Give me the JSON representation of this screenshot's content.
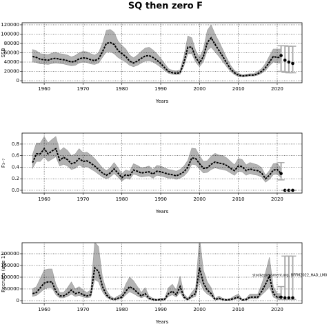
{
  "title": "SQ then zero F",
  "chart_data": [
    {
      "type": "line",
      "ylabel": "SSB",
      "xlabel": "Years",
      "grid": true,
      "x": [
        1957,
        1958,
        1959,
        1960,
        1961,
        1962,
        1963,
        1964,
        1965,
        1966,
        1967,
        1968,
        1969,
        1970,
        1971,
        1972,
        1973,
        1974,
        1975,
        1976,
        1977,
        1978,
        1979,
        1980,
        1981,
        1982,
        1983,
        1984,
        1985,
        1986,
        1987,
        1988,
        1989,
        1990,
        1991,
        1992,
        1993,
        1994,
        1995,
        1996,
        1997,
        1998,
        1999,
        2000,
        2001,
        2002,
        2003,
        2004,
        2005,
        2006,
        2007,
        2008,
        2009,
        2010,
        2011,
        2012,
        2013,
        2014,
        2015,
        2016,
        2017,
        2018,
        2019,
        2020,
        2021
      ],
      "xlim": [
        1954.3,
        2026.4
      ],
      "xticks": [
        1960,
        1970,
        1980,
        1990,
        2000,
        2010,
        2020
      ],
      "ylim": [
        -4400,
        124400
      ],
      "yticks": [
        0,
        20000,
        40000,
        60000,
        80000,
        100000,
        120000
      ],
      "series": [
        {
          "color": "#000000",
          "band_color": "#b3b3b3",
          "values": [
            52000,
            50000,
            46000,
            45000,
            44000,
            47000,
            48000,
            46000,
            45000,
            43000,
            40000,
            42000,
            47000,
            49000,
            48000,
            45000,
            43000,
            47000,
            62000,
            80000,
            82000,
            78000,
            65000,
            58000,
            52000,
            42000,
            38000,
            42000,
            48000,
            53000,
            54000,
            50000,
            44000,
            37000,
            28000,
            20000,
            17000,
            16000,
            17000,
            40000,
            72000,
            72000,
            50000,
            38000,
            52000,
            82000,
            92000,
            78000,
            65000,
            52000,
            38000,
            25000,
            17000,
            12000,
            10000,
            11000,
            12000,
            12000,
            15000,
            20000,
            28000,
            40000,
            52000,
            50000,
            50000
          ],
          "lower": [
            40000,
            39000,
            36000,
            36000,
            35000,
            37000,
            38000,
            37000,
            36000,
            34000,
            32000,
            33000,
            38000,
            40000,
            39000,
            36000,
            35000,
            38000,
            50000,
            62000,
            62000,
            58000,
            50000,
            45000,
            40000,
            33000,
            30000,
            33000,
            38000,
            42000,
            43000,
            40000,
            35000,
            29000,
            22000,
            16000,
            14000,
            13000,
            14000,
            32000,
            58000,
            58000,
            40000,
            30000,
            41000,
            65000,
            72000,
            62000,
            52000,
            41000,
            30000,
            20000,
            13000,
            9000,
            8000,
            9000,
            10000,
            10000,
            12000,
            16000,
            22000,
            32000,
            40000,
            38000,
            38000
          ],
          "upper": [
            67000,
            64000,
            58000,
            57000,
            56000,
            59000,
            61000,
            58000,
            57000,
            55000,
            51000,
            54000,
            60000,
            63000,
            62000,
            58000,
            55000,
            60000,
            80000,
            108000,
            110000,
            104000,
            85000,
            76000,
            68000,
            55000,
            49000,
            55000,
            63000,
            70000,
            72000,
            66000,
            58000,
            48000,
            37000,
            26000,
            22000,
            21000,
            23000,
            53000,
            96000,
            92000,
            65000,
            50000,
            68000,
            108000,
            120000,
            100000,
            84000,
            67000,
            49000,
            33000,
            22000,
            16000,
            13000,
            14000,
            15000,
            15000,
            20000,
            26000,
            37000,
            53000,
            68000,
            68000,
            68000
          ]
        }
      ],
      "projection": {
        "color": "#000000",
        "error_color": "#aaaaaa",
        "x": [
          2021,
          2022,
          2023,
          2024
        ],
        "values": [
          54000,
          44000,
          40000,
          37000
        ],
        "lower": [
          20000,
          18000,
          17000,
          17000
        ],
        "upper": [
          75000,
          75000,
          74000,
          74000
        ]
      }
    },
    {
      "type": "line",
      "ylabel": "F₃₋₇",
      "xlabel": "Years",
      "grid": true,
      "x": [
        1957,
        1958,
        1959,
        1960,
        1961,
        1962,
        1963,
        1964,
        1965,
        1966,
        1967,
        1968,
        1969,
        1970,
        1971,
        1972,
        1973,
        1974,
        1975,
        1976,
        1977,
        1978,
        1979,
        1980,
        1981,
        1982,
        1983,
        1984,
        1985,
        1986,
        1987,
        1988,
        1989,
        1990,
        1991,
        1992,
        1993,
        1994,
        1995,
        1996,
        1997,
        1998,
        1999,
        2000,
        2001,
        2002,
        2003,
        2004,
        2005,
        2006,
        2007,
        2008,
        2009,
        2010,
        2011,
        2012,
        2013,
        2014,
        2015,
        2016,
        2017,
        2018,
        2019,
        2020,
        2021
      ],
      "xlim": [
        1954.3,
        2026.4
      ],
      "xticks": [
        1960,
        1970,
        1980,
        1990,
        2000,
        2010,
        2020
      ],
      "ylim": [
        -0.048,
        0.99
      ],
      "yticks": [
        {
          "value": 0,
          "label": "0.0"
        },
        0.2,
        0.4,
        0.6,
        0.8
      ],
      "series": [
        {
          "color": "#000000",
          "band_color": "#b3b3b3",
          "values": [
            0.48,
            0.63,
            0.63,
            0.72,
            0.63,
            0.68,
            0.72,
            0.52,
            0.57,
            0.53,
            0.46,
            0.48,
            0.55,
            0.5,
            0.51,
            0.47,
            0.42,
            0.36,
            0.3,
            0.26,
            0.3,
            0.37,
            0.3,
            0.22,
            0.27,
            0.25,
            0.35,
            0.33,
            0.3,
            0.31,
            0.32,
            0.28,
            0.33,
            0.32,
            0.3,
            0.28,
            0.27,
            0.25,
            0.28,
            0.32,
            0.4,
            0.56,
            0.55,
            0.46,
            0.38,
            0.39,
            0.45,
            0.49,
            0.47,
            0.46,
            0.43,
            0.38,
            0.34,
            0.42,
            0.41,
            0.34,
            0.37,
            0.35,
            0.34,
            0.3,
            0.2,
            0.26,
            0.35,
            0.36,
            0.29
          ],
          "lower": [
            0.38,
            0.5,
            0.5,
            0.58,
            0.5,
            0.54,
            0.58,
            0.42,
            0.45,
            0.42,
            0.36,
            0.38,
            0.44,
            0.4,
            0.41,
            0.37,
            0.33,
            0.28,
            0.23,
            0.2,
            0.23,
            0.29,
            0.23,
            0.16,
            0.21,
            0.19,
            0.28,
            0.26,
            0.23,
            0.24,
            0.25,
            0.21,
            0.26,
            0.25,
            0.23,
            0.21,
            0.21,
            0.19,
            0.21,
            0.25,
            0.32,
            0.45,
            0.44,
            0.37,
            0.3,
            0.31,
            0.36,
            0.39,
            0.37,
            0.36,
            0.34,
            0.3,
            0.26,
            0.33,
            0.32,
            0.26,
            0.29,
            0.27,
            0.26,
            0.23,
            0.14,
            0.19,
            0.27,
            0.28,
            0.22
          ],
          "upper": [
            0.62,
            0.82,
            0.82,
            0.93,
            0.82,
            0.88,
            0.93,
            0.68,
            0.74,
            0.69,
            0.6,
            0.63,
            0.72,
            0.65,
            0.66,
            0.61,
            0.55,
            0.47,
            0.39,
            0.34,
            0.39,
            0.48,
            0.39,
            0.29,
            0.35,
            0.33,
            0.46,
            0.43,
            0.39,
            0.4,
            0.42,
            0.36,
            0.43,
            0.42,
            0.39,
            0.36,
            0.35,
            0.33,
            0.36,
            0.42,
            0.52,
            0.73,
            0.72,
            0.6,
            0.5,
            0.51,
            0.59,
            0.64,
            0.61,
            0.6,
            0.56,
            0.5,
            0.44,
            0.55,
            0.53,
            0.44,
            0.48,
            0.46,
            0.44,
            0.39,
            0.26,
            0.34,
            0.46,
            0.47,
            0.38
          ]
        }
      ],
      "projection": {
        "color": "#000000",
        "error_color": "#aaaaaa",
        "x": [
          2021,
          2022,
          2023,
          2024
        ],
        "values": [
          0.29,
          0,
          0,
          0
        ],
        "lower": [
          0.18,
          0,
          0,
          0
        ],
        "upper": [
          0.48,
          0,
          0,
          0
        ]
      }
    },
    {
      "type": "line",
      "ylabel": "Recruits (age 1)",
      "xlabel": "Years",
      "grid": true,
      "annotation": "stockassessment.org, BFFM2022_HAD_LM0",
      "x": [
        1957,
        1958,
        1959,
        1960,
        1961,
        1962,
        1963,
        1964,
        1965,
        1966,
        1967,
        1968,
        1969,
        1970,
        1971,
        1972,
        1973,
        1974,
        1975,
        1976,
        1977,
        1978,
        1979,
        1980,
        1981,
        1982,
        1983,
        1984,
        1985,
        1986,
        1987,
        1988,
        1989,
        1990,
        1991,
        1992,
        1993,
        1994,
        1995,
        1996,
        1997,
        1998,
        1999,
        2000,
        2001,
        2002,
        2003,
        2004,
        2005,
        2006,
        2007,
        2008,
        2009,
        2010,
        2011,
        2012,
        2013,
        2014,
        2015,
        2016,
        2017,
        2018,
        2019,
        2020,
        2021
      ],
      "xlim": [
        1954.3,
        2026.4
      ],
      "xticks": [
        1960,
        1970,
        1980,
        1990,
        2000,
        2010,
        2020
      ],
      "ylim": [
        -11800,
        247000
      ],
      "yticks": [
        0,
        50000,
        100000,
        150000,
        200000
      ],
      "series": [
        {
          "color": "#000000",
          "band_color": "#b3b3b3",
          "values": [
            30000,
            35000,
            55000,
            75000,
            80000,
            80000,
            40000,
            20000,
            20000,
            30000,
            45000,
            30000,
            35000,
            25000,
            20000,
            25000,
            140000,
            125000,
            60000,
            25000,
            10000,
            5000,
            10000,
            15000,
            40000,
            60000,
            50000,
            35000,
            20000,
            30000,
            10000,
            5000,
            3000,
            5000,
            5000,
            30000,
            40000,
            25000,
            60000,
            15000,
            5000,
            20000,
            30000,
            140000,
            75000,
            45000,
            30000,
            5000,
            10000,
            5000,
            3000,
            5000,
            10000,
            15000,
            3000,
            5000,
            15000,
            15000,
            15000,
            40000,
            70000,
            105000,
            30000,
            15000,
            15000
          ],
          "lower": [
            18000,
            22000,
            35000,
            50000,
            55000,
            55000,
            25000,
            12000,
            12000,
            18000,
            28000,
            18000,
            22000,
            15000,
            12000,
            15000,
            90000,
            80000,
            38000,
            15000,
            5000,
            2000,
            5000,
            8000,
            25000,
            38000,
            30000,
            20000,
            12000,
            18000,
            5000,
            2000,
            1000,
            2000,
            2000,
            18000,
            25000,
            15000,
            35000,
            8000,
            2000,
            12000,
            18000,
            85000,
            45000,
            28000,
            18000,
            2000,
            5000,
            2000,
            1000,
            2000,
            5000,
            8000,
            1000,
            2000,
            8000,
            8000,
            8000,
            25000,
            40000,
            60000,
            15000,
            8000,
            8000
          ],
          "upper": [
            50000,
            60000,
            95000,
            130000,
            135000,
            135000,
            70000,
            35000,
            35000,
            55000,
            80000,
            50000,
            60000,
            45000,
            35000,
            45000,
            250000,
            230000,
            100000,
            45000,
            20000,
            10000,
            20000,
            28000,
            70000,
            100000,
            85000,
            60000,
            35000,
            55000,
            20000,
            10000,
            6000,
            10000,
            10000,
            55000,
            70000,
            45000,
            105000,
            28000,
            10000,
            35000,
            55000,
            270000,
            130000,
            80000,
            55000,
            10000,
            20000,
            10000,
            6000,
            10000,
            20000,
            28000,
            6000,
            10000,
            28000,
            28000,
            28000,
            70000,
            120000,
            185000,
            60000,
            30000,
            30000
          ]
        }
      ],
      "projection": {
        "color": "#000000",
        "error_color": "#aaaaaa",
        "x": [
          2021,
          2022,
          2023,
          2024
        ],
        "values": [
          15000,
          12000,
          12000,
          12000
        ],
        "lower": [
          5000,
          5000,
          5000,
          5000
        ],
        "upper": [
          60000,
          190000,
          190000,
          190000
        ]
      }
    }
  ]
}
